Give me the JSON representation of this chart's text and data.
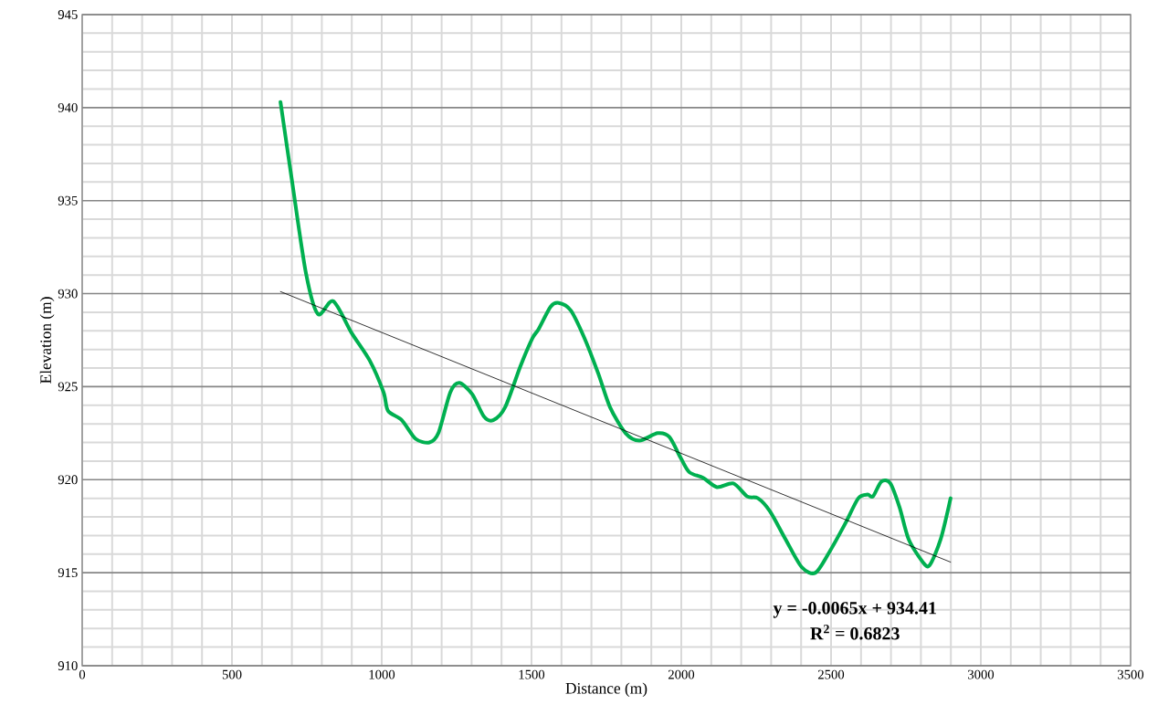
{
  "chart_data": {
    "type": "line",
    "xlabel": "Distance (m)",
    "ylabel": "Elevation (m)",
    "xlim": [
      0,
      3500
    ],
    "xticks": [
      0,
      500,
      1000,
      1500,
      2000,
      2500,
      3000,
      3500
    ],
    "ylim": [
      910,
      945
    ],
    "yticks": [
      910,
      915,
      920,
      925,
      930,
      935,
      940,
      945
    ],
    "grid": true,
    "marker": "none",
    "line_style": "solid",
    "series": [
      {
        "color": "#00b050",
        "x": [
          662,
          701,
          747,
          787,
          838,
          899,
          960,
          1006,
          1021,
          1067,
          1113,
          1159,
          1189,
          1229,
          1259,
          1302,
          1341,
          1372,
          1412,
          1463,
          1503,
          1524,
          1564,
          1591,
          1631,
          1677,
          1723,
          1762,
          1814,
          1860,
          1921,
          1960,
          1997,
          2027,
          2073,
          2119,
          2174,
          2220,
          2256,
          2296,
          2348,
          2402,
          2448,
          2494,
          2546,
          2591,
          2622,
          2640,
          2668,
          2698,
          2729,
          2759,
          2805,
          2829,
          2866,
          2899
        ],
        "values": [
          940.3,
          936.0,
          931.1,
          928.9,
          929.6,
          927.9,
          926.4,
          924.7,
          923.7,
          923.2,
          922.2,
          922.0,
          922.5,
          924.7,
          925.2,
          924.6,
          923.4,
          923.2,
          923.9,
          926.1,
          927.6,
          928.1,
          929.3,
          929.5,
          929.1,
          927.6,
          925.7,
          923.9,
          922.5,
          922.1,
          922.5,
          922.3,
          921.2,
          920.4,
          920.1,
          919.6,
          919.8,
          919.1,
          919.0,
          918.3,
          916.8,
          915.3,
          915.0,
          916.1,
          917.6,
          919.0,
          919.2,
          919.1,
          919.9,
          919.8,
          918.5,
          916.8,
          915.6,
          915.4,
          916.8,
          919.0
        ]
      },
      {
        "type": "line",
        "color": "#000000",
        "x": [
          662,
          2899
        ],
        "values": [
          930.11,
          915.57
        ]
      }
    ],
    "annotations": [
      "**y = -0.0065x + 934.41**",
      "**R$^{2}$ = 0.6823**"
    ]
  }
}
